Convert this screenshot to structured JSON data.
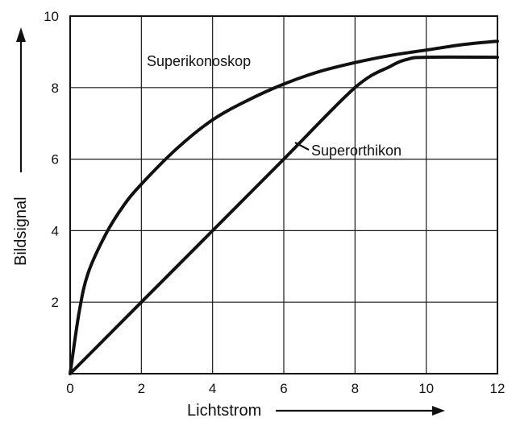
{
  "chart_data": {
    "type": "line",
    "xlabel": "Lichtstrom",
    "ylabel": "Bildsignal",
    "xlim": [
      0,
      12
    ],
    "ylim": [
      0,
      10
    ],
    "x_ticks": [
      "0",
      "2",
      "4",
      "6",
      "8",
      "10",
      "12"
    ],
    "y_ticks": [
      "2",
      "4",
      "6",
      "8",
      "10"
    ],
    "grid": true,
    "series": [
      {
        "name": "Superikonoskop",
        "points": [
          [
            0,
            0
          ],
          [
            0.25,
            1.7
          ],
          [
            0.5,
            2.8
          ],
          [
            1,
            3.9
          ],
          [
            1.5,
            4.7
          ],
          [
            2,
            5.3
          ],
          [
            3,
            6.3
          ],
          [
            4,
            7.1
          ],
          [
            5,
            7.65
          ],
          [
            6,
            8.1
          ],
          [
            7,
            8.45
          ],
          [
            8,
            8.7
          ],
          [
            9,
            8.9
          ],
          [
            10,
            9.05
          ],
          [
            11,
            9.2
          ],
          [
            12,
            9.3
          ]
        ]
      },
      {
        "name": "Superorthikon",
        "points": [
          [
            0,
            0
          ],
          [
            2,
            2
          ],
          [
            4,
            4
          ],
          [
            6,
            6
          ],
          [
            8,
            8
          ],
          [
            9,
            8.6
          ],
          [
            9.5,
            8.8
          ],
          [
            10,
            8.85
          ],
          [
            12,
            8.85
          ]
        ]
      }
    ]
  }
}
